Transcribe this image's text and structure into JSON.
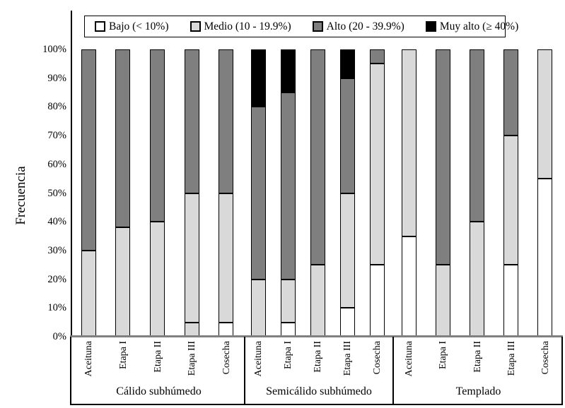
{
  "chart_data": {
    "type": "bar",
    "stacked": true,
    "orientation": "vertical",
    "title": "",
    "xlabel": "",
    "ylabel": "Frecuencia",
    "ylim": [
      0,
      100
    ],
    "grid": false,
    "legend_position": "top",
    "y_tick_labels": [
      "0%",
      "10%",
      "20%",
      "30%",
      "40%",
      "50%",
      "60%",
      "70%",
      "80%",
      "90%",
      "100%"
    ],
    "y_tick_values": [
      0,
      10,
      20,
      30,
      40,
      50,
      60,
      70,
      80,
      90,
      100
    ],
    "series_names": [
      "Bajo (< 10%)",
      "Medio (10 - 19.9%)",
      "Alto (20 - 39.9%)",
      "Muy alto (≥ 40%)"
    ],
    "series_colors": [
      "#ffffff",
      "#d9d9d9",
      "#7f7f7f",
      "#000000"
    ],
    "groups": [
      {
        "label": "Cálido subhúmedo",
        "categories": [
          "Aceituna",
          "Etapa I",
          "Etapa II",
          "Etapa III",
          "Cosecha"
        ],
        "series": [
          {
            "name": "Bajo (< 10%)",
            "values": [
              0,
              0,
              0,
              5,
              5
            ]
          },
          {
            "name": "Medio (10 - 19.9%)",
            "values": [
              30,
              38,
              40,
              45,
              45
            ]
          },
          {
            "name": "Alto (20 - 39.9%)",
            "values": [
              70,
              62,
              60,
              50,
              50
            ]
          },
          {
            "name": "Muy alto (≥ 40%)",
            "values": [
              0,
              0,
              0,
              0,
              0
            ]
          }
        ]
      },
      {
        "label": "Semicálido subhúmedo",
        "categories": [
          "Aceituna",
          "Etapa I",
          "Etapa II",
          "Etapa III",
          "Cosecha"
        ],
        "series": [
          {
            "name": "Bajo (< 10%)",
            "values": [
              0,
              5,
              0,
              10,
              25
            ]
          },
          {
            "name": "Medio (10 - 19.9%)",
            "values": [
              20,
              15,
              25,
              40,
              70
            ]
          },
          {
            "name": "Alto (20 - 39.9%)",
            "values": [
              60,
              65,
              75,
              40,
              5
            ]
          },
          {
            "name": "Muy alto (≥ 40%)",
            "values": [
              20,
              15,
              0,
              10,
              0
            ]
          }
        ]
      },
      {
        "label": "Templado",
        "categories": [
          "Aceituna",
          "Etapa I",
          "Etapa II",
          "Etapa III",
          "Cosecha"
        ],
        "series": [
          {
            "name": "Bajo (< 10%)",
            "values": [
              35,
              0,
              0,
              25,
              55
            ]
          },
          {
            "name": "Medio (10 - 19.9%)",
            "values": [
              65,
              25,
              40,
              45,
              45
            ]
          },
          {
            "name": "Alto (20 - 39.9%)",
            "values": [
              0,
              75,
              60,
              30,
              0
            ]
          },
          {
            "name": "Muy alto (≥ 40%)",
            "values": [
              0,
              0,
              0,
              0,
              0
            ]
          }
        ]
      }
    ],
    "segment_color_overrides": [
      {
        "group_index": 0,
        "category_index": 3,
        "series_index": 0,
        "color": "#d9d9d9"
      }
    ],
    "axis_colors": {
      "baseline": "#808080",
      "axis_line": "#000000"
    }
  }
}
